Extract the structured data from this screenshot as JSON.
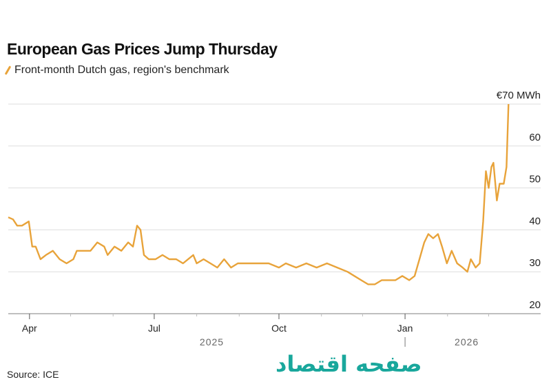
{
  "chart_data": {
    "type": "line",
    "title": "European Gas Prices Jump Thursday",
    "legend": [
      "Front-month Dutch gas, region's benchmark"
    ],
    "ylabel": "€70 MWh",
    "ylim": [
      20,
      70
    ],
    "yticks": [
      20,
      30,
      40,
      50,
      60,
      70
    ],
    "ytick_labels": [
      "20",
      "30",
      "40",
      "50",
      "60",
      "€70 MWh"
    ],
    "x_unit": "days since 2025-03-15",
    "xlim": [
      0,
      387
    ],
    "xticks": [
      {
        "day": 17,
        "label": "Apr"
      },
      {
        "day": 108,
        "label": "Jul"
      },
      {
        "day": 199,
        "label": "Oct"
      },
      {
        "day": 291,
        "label": "Jan"
      }
    ],
    "minor_tick_days": [
      47,
      78,
      139,
      170,
      230,
      260,
      322,
      352
    ],
    "year_labels": [
      {
        "day": 150,
        "label": "2025"
      },
      {
        "day": 336,
        "label": "2026"
      }
    ],
    "year_divider_day": 291,
    "color": "#e8a33a",
    "grid": true,
    "series": [
      {
        "name": "Front-month Dutch gas, region's benchmark",
        "x": [
          1.5,
          5,
          8,
          11.5,
          16.5,
          19,
          21.5,
          25,
          29,
          34,
          39,
          44,
          49,
          51.5,
          56.5,
          61.5,
          66.5,
          71.5,
          74,
          79,
          84,
          89,
          92.5,
          95.5,
          98,
          100.5,
          104,
          109,
          114,
          119,
          124,
          129,
          136.5,
          139,
          144,
          149,
          154,
          159,
          164,
          169,
          176.5,
          184,
          191.5,
          199,
          204,
          211.5,
          219,
          226.5,
          234,
          241.5,
          249,
          254,
          259,
          264,
          269,
          274,
          279,
          284,
          289,
          294,
          298,
          301.5,
          305,
          308,
          311.5,
          315,
          318,
          321.5,
          325,
          329,
          333,
          336.5,
          339,
          342.5,
          345.5,
          348,
          350,
          352,
          354,
          355.5,
          358,
          360,
          363,
          365,
          366.5
        ],
        "values": [
          43,
          42.5,
          41,
          41,
          42,
          36,
          36,
          33,
          34,
          35,
          33,
          32,
          33,
          35,
          35,
          35,
          37,
          36,
          34,
          36,
          35,
          37,
          36,
          41,
          40,
          34,
          33,
          33,
          34,
          33,
          33,
          32,
          34,
          32,
          33,
          32,
          31,
          33,
          31,
          32,
          32,
          32,
          32,
          31,
          32,
          31,
          32,
          31,
          32,
          31,
          30,
          29,
          28,
          27,
          27,
          28,
          28,
          28,
          29,
          28,
          29,
          33,
          37,
          39,
          38,
          39,
          36,
          32,
          35,
          32,
          31,
          30,
          33,
          31,
          32,
          42,
          54,
          50,
          55,
          56,
          47,
          51,
          51,
          55,
          70
        ]
      }
    ],
    "source": "Source: ICE"
  },
  "watermark": "صفحه اقتصاد"
}
